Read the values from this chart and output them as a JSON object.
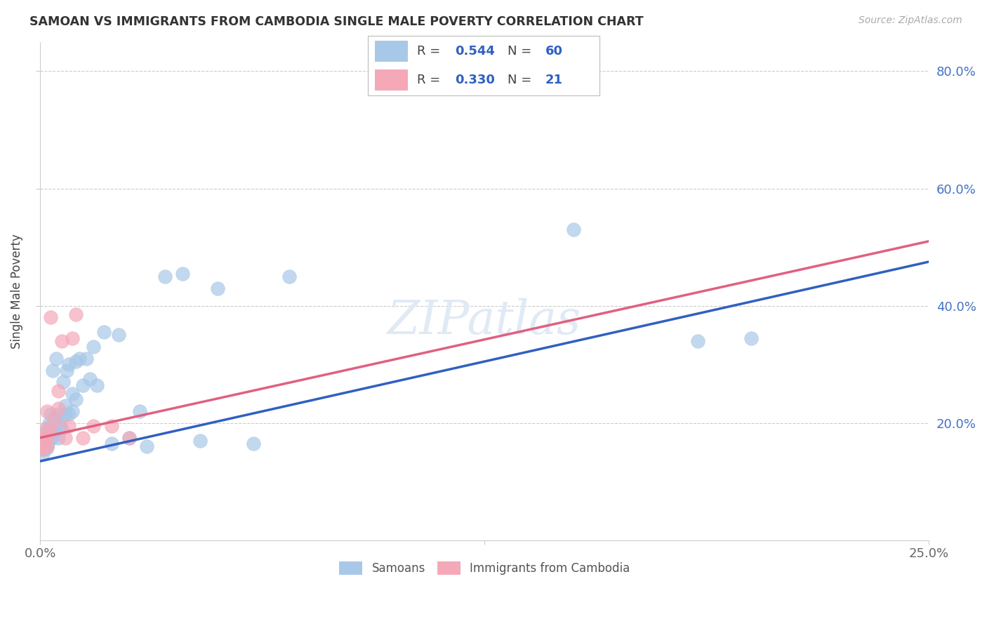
{
  "title": "SAMOAN VS IMMIGRANTS FROM CAMBODIA SINGLE MALE POVERTY CORRELATION CHART",
  "source": "Source: ZipAtlas.com",
  "ylabel": "Single Male Poverty",
  "legend_label1": "Samoans",
  "legend_label2": "Immigrants from Cambodia",
  "R1": 0.544,
  "N1": 60,
  "R2": 0.33,
  "N2": 21,
  "color1": "#a8c8e8",
  "color2": "#f4a8b8",
  "line_color1": "#3060c0",
  "line_color2": "#e06080",
  "blue_line_y0": 0.135,
  "blue_line_y1": 0.475,
  "pink_line_y0": 0.175,
  "pink_line_y1": 0.51,
  "xlim": [
    0,
    0.25
  ],
  "ylim": [
    0,
    0.85
  ],
  "xticks": [
    0.0,
    0.25
  ],
  "xticklabels": [
    "0.0%",
    "25.0%"
  ],
  "yticks": [
    0.2,
    0.4,
    0.6,
    0.8
  ],
  "yticklabels": [
    "20.0%",
    "40.0%",
    "60.0%",
    "80.0%"
  ],
  "blue_x": [
    0.0005,
    0.0007,
    0.001,
    0.001,
    0.0012,
    0.0013,
    0.0015,
    0.0015,
    0.0018,
    0.002,
    0.002,
    0.002,
    0.0022,
    0.0023,
    0.0025,
    0.003,
    0.003,
    0.003,
    0.0032,
    0.0035,
    0.004,
    0.004,
    0.0042,
    0.0045,
    0.005,
    0.005,
    0.0055,
    0.006,
    0.006,
    0.0065,
    0.007,
    0.007,
    0.0075,
    0.008,
    0.008,
    0.009,
    0.009,
    0.01,
    0.01,
    0.011,
    0.012,
    0.013,
    0.014,
    0.015,
    0.016,
    0.018,
    0.02,
    0.022,
    0.025,
    0.028,
    0.03,
    0.035,
    0.04,
    0.045,
    0.05,
    0.06,
    0.07,
    0.15,
    0.185,
    0.2
  ],
  "blue_y": [
    0.155,
    0.148,
    0.16,
    0.17,
    0.155,
    0.165,
    0.158,
    0.185,
    0.17,
    0.158,
    0.165,
    0.175,
    0.165,
    0.19,
    0.2,
    0.175,
    0.195,
    0.215,
    0.175,
    0.29,
    0.185,
    0.21,
    0.2,
    0.31,
    0.175,
    0.215,
    0.195,
    0.19,
    0.21,
    0.27,
    0.215,
    0.23,
    0.29,
    0.215,
    0.3,
    0.22,
    0.25,
    0.24,
    0.305,
    0.31,
    0.265,
    0.31,
    0.275,
    0.33,
    0.265,
    0.355,
    0.165,
    0.35,
    0.175,
    0.22,
    0.16,
    0.45,
    0.455,
    0.17,
    0.43,
    0.165,
    0.45,
    0.53,
    0.34,
    0.345
  ],
  "pink_x": [
    0.0005,
    0.001,
    0.001,
    0.0015,
    0.002,
    0.002,
    0.002,
    0.003,
    0.003,
    0.004,
    0.005,
    0.005,
    0.006,
    0.007,
    0.008,
    0.009,
    0.01,
    0.012,
    0.015,
    0.02,
    0.025
  ],
  "pink_y": [
    0.155,
    0.16,
    0.175,
    0.19,
    0.16,
    0.175,
    0.22,
    0.185,
    0.38,
    0.205,
    0.225,
    0.255,
    0.34,
    0.175,
    0.195,
    0.345,
    0.385,
    0.175,
    0.195,
    0.195,
    0.175
  ]
}
